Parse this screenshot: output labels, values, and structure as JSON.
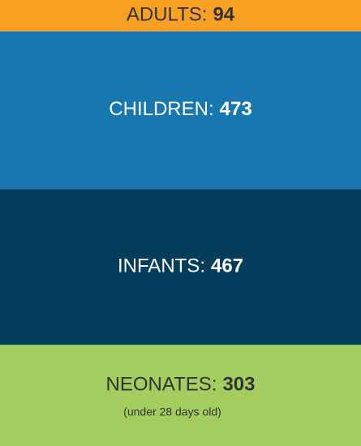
{
  "chart_data": {
    "type": "stacked-block",
    "categories": [
      "ADULTS:",
      "CHILDREN:",
      "INFANTS:",
      "NEONATES:"
    ],
    "values": [
      94,
      473,
      467,
      303
    ],
    "colors": [
      "#f7a021",
      "#1877ae",
      "#053d5c",
      "#a3cd5e"
    ],
    "text_colors": [
      "#333333",
      "#ffffff",
      "#ffffff",
      "#333333"
    ],
    "annotations": [
      {
        "category": "NEONATES:",
        "text": "(under 28 days old)"
      }
    ]
  }
}
